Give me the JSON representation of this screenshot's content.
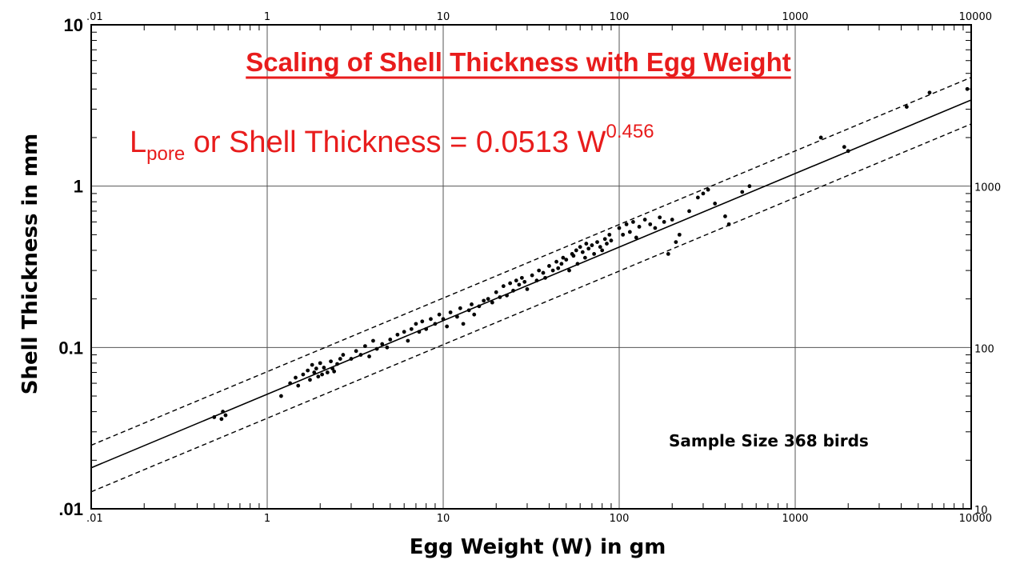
{
  "chart_data": {
    "type": "scatter",
    "title": "Scaling of Shell Thickness with Egg Weight",
    "xlabel": "Egg Weight (W) in gm",
    "ylabel": "Shell Thickness in mm",
    "x_scale": "log",
    "y_scale": "log",
    "xlim": [
      0.1,
      10000
    ],
    "ylim": [
      0.01,
      10
    ],
    "grid": true,
    "x_ticks_bottom": [
      ".01",
      "1",
      "10",
      "100",
      "1000",
      "10000"
    ],
    "x_ticks_top": [
      ".01",
      "1",
      "10",
      "100",
      "1000",
      "10000"
    ],
    "y_ticks_left": [
      ".01",
      "0.1",
      "1",
      "10"
    ],
    "y_ticks_right": [
      "10",
      "100",
      "1000"
    ],
    "equation": {
      "prefix": "L",
      "subscript": "pore",
      "text": " or Shell Thickness  = 0.0513 W",
      "superscript": "0.456"
    },
    "annotation": "Sample Size 368 birds",
    "fit": {
      "coefficient": 0.0513,
      "exponent": 0.456,
      "upper_factor": 1.38,
      "lower_factor": 0.71
    },
    "series": [
      {
        "points": [
          [
            0.5,
            0.037
          ],
          [
            0.55,
            0.036
          ],
          [
            0.56,
            0.04
          ],
          [
            0.58,
            0.038
          ],
          [
            1.2,
            0.05
          ],
          [
            1.35,
            0.06
          ],
          [
            1.45,
            0.065
          ],
          [
            1.5,
            0.058
          ],
          [
            1.6,
            0.068
          ],
          [
            1.7,
            0.072
          ],
          [
            1.75,
            0.063
          ],
          [
            1.8,
            0.078
          ],
          [
            1.85,
            0.07
          ],
          [
            1.9,
            0.074
          ],
          [
            1.95,
            0.066
          ],
          [
            2.0,
            0.08
          ],
          [
            2.05,
            0.068
          ],
          [
            2.1,
            0.075
          ],
          [
            2.2,
            0.07
          ],
          [
            2.3,
            0.082
          ],
          [
            2.35,
            0.074
          ],
          [
            2.4,
            0.071
          ],
          [
            2.5,
            0.079
          ],
          [
            2.6,
            0.085
          ],
          [
            2.7,
            0.09
          ],
          [
            3.0,
            0.085
          ],
          [
            3.2,
            0.095
          ],
          [
            3.4,
            0.09
          ],
          [
            3.6,
            0.102
          ],
          [
            3.8,
            0.088
          ],
          [
            4.0,
            0.11
          ],
          [
            4.2,
            0.098
          ],
          [
            4.5,
            0.105
          ],
          [
            4.8,
            0.1
          ],
          [
            5.0,
            0.112
          ],
          [
            5.5,
            0.12
          ],
          [
            6.0,
            0.125
          ],
          [
            6.3,
            0.11
          ],
          [
            6.6,
            0.13
          ],
          [
            7.0,
            0.14
          ],
          [
            7.3,
            0.125
          ],
          [
            7.6,
            0.145
          ],
          [
            8.0,
            0.13
          ],
          [
            8.5,
            0.15
          ],
          [
            9.0,
            0.14
          ],
          [
            9.5,
            0.16
          ],
          [
            10,
            0.15
          ],
          [
            10.5,
            0.135
          ],
          [
            11,
            0.165
          ],
          [
            12,
            0.155
          ],
          [
            12.5,
            0.175
          ],
          [
            13,
            0.14
          ],
          [
            14,
            0.17
          ],
          [
            14.5,
            0.185
          ],
          [
            15,
            0.16
          ],
          [
            16,
            0.18
          ],
          [
            17,
            0.195
          ],
          [
            18,
            0.2
          ],
          [
            19,
            0.19
          ],
          [
            20,
            0.22
          ],
          [
            21,
            0.205
          ],
          [
            22,
            0.24
          ],
          [
            23,
            0.21
          ],
          [
            24,
            0.25
          ],
          [
            25,
            0.225
          ],
          [
            26,
            0.26
          ],
          [
            27,
            0.245
          ],
          [
            28,
            0.27
          ],
          [
            29,
            0.255
          ],
          [
            30,
            0.23
          ],
          [
            32,
            0.28
          ],
          [
            34,
            0.26
          ],
          [
            35,
            0.3
          ],
          [
            37,
            0.29
          ],
          [
            38,
            0.27
          ],
          [
            40,
            0.32
          ],
          [
            42,
            0.3
          ],
          [
            44,
            0.34
          ],
          [
            45,
            0.31
          ],
          [
            47,
            0.33
          ],
          [
            48,
            0.36
          ],
          [
            50,
            0.35
          ],
          [
            52,
            0.3
          ],
          [
            54,
            0.38
          ],
          [
            55,
            0.37
          ],
          [
            57,
            0.4
          ],
          [
            58,
            0.33
          ],
          [
            60,
            0.42
          ],
          [
            62,
            0.39
          ],
          [
            64,
            0.36
          ],
          [
            65,
            0.44
          ],
          [
            67,
            0.41
          ],
          [
            70,
            0.43
          ],
          [
            72,
            0.38
          ],
          [
            75,
            0.45
          ],
          [
            78,
            0.42
          ],
          [
            80,
            0.4
          ],
          [
            83,
            0.47
          ],
          [
            85,
            0.44
          ],
          [
            88,
            0.5
          ],
          [
            90,
            0.46
          ],
          [
            100,
            0.55
          ],
          [
            105,
            0.5
          ],
          [
            110,
            0.58
          ],
          [
            115,
            0.52
          ],
          [
            120,
            0.6
          ],
          [
            125,
            0.48
          ],
          [
            130,
            0.56
          ],
          [
            140,
            0.62
          ],
          [
            150,
            0.58
          ],
          [
            160,
            0.55
          ],
          [
            170,
            0.64
          ],
          [
            180,
            0.6
          ],
          [
            190,
            0.38
          ],
          [
            200,
            0.62
          ],
          [
            210,
            0.45
          ],
          [
            220,
            0.5
          ],
          [
            250,
            0.7
          ],
          [
            280,
            0.85
          ],
          [
            300,
            0.9
          ],
          [
            320,
            0.95
          ],
          [
            350,
            0.78
          ],
          [
            400,
            0.65
          ],
          [
            420,
            0.58
          ],
          [
            500,
            0.92
          ],
          [
            550,
            1.0
          ],
          [
            1400,
            2.0
          ],
          [
            1900,
            1.75
          ],
          [
            2000,
            1.65
          ],
          [
            4300,
            3.1
          ],
          [
            5800,
            3.8
          ],
          [
            9500,
            4.0
          ]
        ]
      }
    ]
  }
}
